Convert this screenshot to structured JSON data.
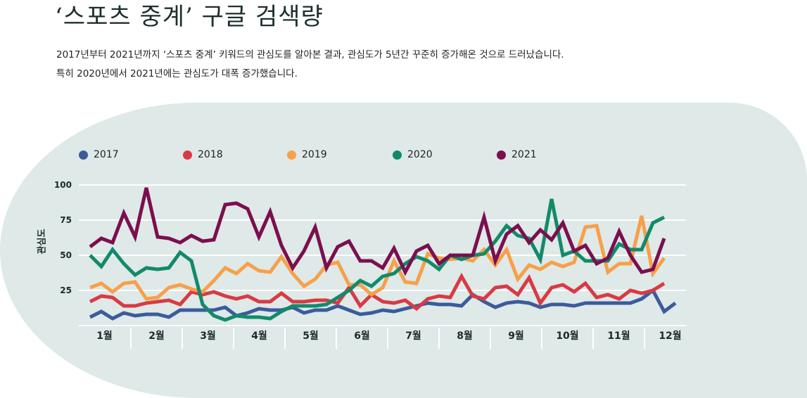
{
  "title": "‘스포츠 중계’ 구글 검색량",
  "subtitle": [
    "2017년부터 2021년까지 ‘스포츠 중계’ 키워드의 관심도를 알아본 결과, 관심도가 5년간 꾸준히 증가해온 것으로 드러났습니다.",
    "특히 2020년에서 2021년에는 관심도가 대폭 증가했습니다."
  ],
  "chart_data": {
    "type": "line",
    "ylabel": "관심도",
    "ylim": [
      0,
      100
    ],
    "yticks": [
      "100",
      "75",
      "50",
      "25"
    ],
    "grid": true,
    "legend_position": "top-left",
    "x_tick_labels": [
      "1월",
      "2월",
      "3월",
      "4월",
      "5월",
      "6월",
      "7월",
      "8월",
      "9월",
      "10월",
      "11월",
      "12월"
    ],
    "series": [
      {
        "name": "2017",
        "color": "#3b5b9b",
        "values": [
          6,
          10,
          5,
          9,
          7,
          8,
          8,
          6,
          11,
          11,
          11,
          11,
          13,
          7,
          9,
          12,
          11,
          11,
          13,
          9,
          11,
          11,
          14,
          11,
          8,
          9,
          11,
          10,
          12,
          14,
          16,
          15,
          15,
          14,
          22,
          17,
          13,
          16,
          17,
          16,
          13,
          15,
          15,
          14,
          16,
          16,
          16,
          16,
          16,
          19,
          25,
          10,
          16
        ]
      },
      {
        "name": "2018",
        "color": "#d93a44",
        "values": [
          17,
          21,
          20,
          14,
          14,
          16,
          17,
          18,
          15,
          24,
          22,
          24,
          21,
          19,
          21,
          17,
          17,
          23,
          17,
          17,
          18,
          18,
          16,
          27,
          14,
          22,
          17,
          16,
          18,
          12,
          19,
          21,
          20,
          35,
          21,
          19,
          27,
          28,
          22,
          34,
          16,
          27,
          29,
          24,
          30,
          20,
          22,
          19,
          25,
          23,
          25,
          30
        ]
      },
      {
        "name": "2019",
        "color": "#f7a04a",
        "values": [
          27,
          30,
          24,
          30,
          31,
          19,
          20,
          27,
          29,
          26,
          24,
          32,
          41,
          37,
          44,
          39,
          38,
          49,
          37,
          28,
          33,
          43,
          45,
          29,
          29,
          22,
          27,
          46,
          31,
          30,
          51,
          48,
          47,
          48,
          46,
          54,
          43,
          54,
          33,
          43,
          40,
          45,
          42,
          45,
          70,
          71,
          38,
          44,
          44,
          78,
          37,
          48
        ]
      },
      {
        "name": "2020",
        "color": "#128a6a",
        "values": [
          50,
          42,
          54,
          44,
          36,
          41,
          40,
          41,
          52,
          46,
          15,
          7,
          4,
          7,
          6,
          6,
          5,
          10,
          14,
          14,
          14,
          15,
          20,
          25,
          32,
          28,
          35,
          37,
          44,
          49,
          46,
          40,
          50,
          47,
          50,
          51,
          60,
          71,
          64,
          62,
          47,
          90,
          50,
          53,
          46,
          46,
          46,
          58,
          54,
          54,
          73,
          77
        ]
      },
      {
        "name": "2021",
        "color": "#7b0f4e",
        "values": [
          56,
          62,
          59,
          80,
          63,
          98,
          63,
          62,
          59,
          64,
          60,
          61,
          86,
          87,
          83,
          63,
          81,
          57,
          41,
          53,
          70,
          41,
          56,
          60,
          46,
          46,
          41,
          55,
          38,
          53,
          57,
          44,
          50,
          50,
          50,
          77,
          46,
          65,
          71,
          59,
          68,
          61,
          73,
          53,
          57,
          44,
          48,
          67,
          50,
          38,
          40,
          62
        ]
      }
    ]
  }
}
